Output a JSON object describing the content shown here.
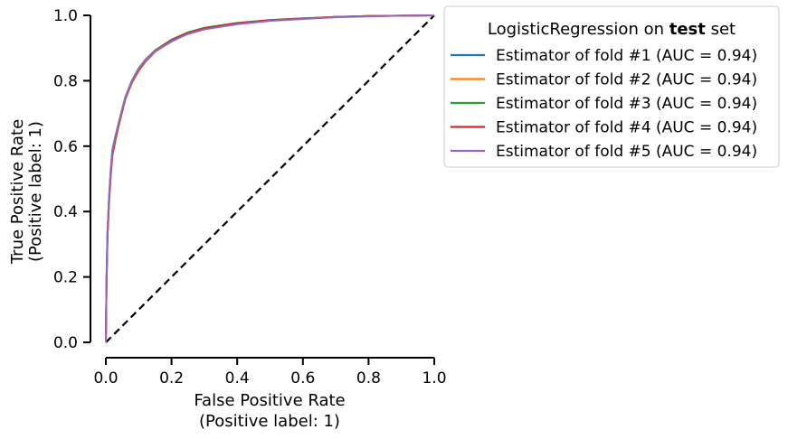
{
  "chart_data": {
    "type": "line",
    "legend": {
      "title_prefix": "LogisticRegression on ",
      "title_bold": "test",
      "title_suffix": " set",
      "placement": "outside-upper-right"
    },
    "xlabel_line1": "False Positive Rate",
    "xlabel_line2": "(Positive label: 1)",
    "ylabel_line1": "True Positive Rate",
    "ylabel_line2": "(Positive label: 1)",
    "xlim": [
      0,
      1
    ],
    "ylim": [
      0,
      1
    ],
    "x_ticks": [
      {
        "value": 0.0,
        "label": "0.0"
      },
      {
        "value": 0.2,
        "label": "0.2"
      },
      {
        "value": 0.4,
        "label": "0.4"
      },
      {
        "value": 0.6,
        "label": "0.6"
      },
      {
        "value": 0.8,
        "label": "0.8"
      },
      {
        "value": 1.0,
        "label": "1.0"
      }
    ],
    "y_ticks": [
      {
        "value": 0.0,
        "label": "0.0"
      },
      {
        "value": 0.2,
        "label": "0.2"
      },
      {
        "value": 0.4,
        "label": "0.4"
      },
      {
        "value": 0.6,
        "label": "0.6"
      },
      {
        "value": 0.8,
        "label": "0.8"
      },
      {
        "value": 1.0,
        "label": "1.0"
      }
    ],
    "grid": false,
    "chance_line": {
      "x": [
        0,
        1
      ],
      "y": [
        0,
        1
      ],
      "color": "#000000",
      "style": "dashed"
    },
    "series": [
      {
        "name": "Estimator of fold #1 (AUC = 0.94)",
        "color": "#1f77b4",
        "x": [
          0,
          0.002,
          0.005,
          0.01,
          0.015,
          0.02,
          0.03,
          0.04,
          0.05,
          0.06,
          0.08,
          0.1,
          0.12,
          0.15,
          0.2,
          0.25,
          0.3,
          0.4,
          0.5,
          0.6,
          0.7,
          0.8,
          0.9,
          1.0
        ],
        "y": [
          0,
          0.18,
          0.33,
          0.44,
          0.52,
          0.58,
          0.63,
          0.67,
          0.71,
          0.75,
          0.8,
          0.835,
          0.86,
          0.89,
          0.92,
          0.945,
          0.96,
          0.975,
          0.985,
          0.99,
          0.995,
          0.998,
          0.999,
          1.0
        ]
      },
      {
        "name": "Estimator of fold #2 (AUC = 0.94)",
        "color": "#ff7f0e",
        "x": [
          0,
          0.002,
          0.005,
          0.01,
          0.015,
          0.02,
          0.03,
          0.04,
          0.05,
          0.06,
          0.08,
          0.1,
          0.12,
          0.15,
          0.2,
          0.25,
          0.3,
          0.4,
          0.5,
          0.6,
          0.7,
          0.8,
          0.9,
          1.0
        ],
        "y": [
          0,
          0.17,
          0.32,
          0.43,
          0.51,
          0.57,
          0.62,
          0.665,
          0.705,
          0.745,
          0.795,
          0.83,
          0.857,
          0.888,
          0.922,
          0.944,
          0.958,
          0.974,
          0.984,
          0.99,
          0.995,
          0.998,
          0.999,
          1.0
        ]
      },
      {
        "name": "Estimator of fold #3 (AUC = 0.94)",
        "color": "#2ca02c",
        "x": [
          0,
          0.002,
          0.005,
          0.01,
          0.015,
          0.02,
          0.03,
          0.04,
          0.05,
          0.06,
          0.08,
          0.1,
          0.12,
          0.15,
          0.2,
          0.25,
          0.3,
          0.4,
          0.5,
          0.6,
          0.7,
          0.8,
          0.9,
          1.0
        ],
        "y": [
          0,
          0.19,
          0.34,
          0.45,
          0.53,
          0.59,
          0.635,
          0.675,
          0.715,
          0.752,
          0.802,
          0.838,
          0.864,
          0.893,
          0.926,
          0.948,
          0.962,
          0.977,
          0.986,
          0.991,
          0.995,
          0.998,
          0.999,
          1.0
        ]
      },
      {
        "name": "Estimator of fold #4 (AUC = 0.94)",
        "color": "#d62728",
        "x": [
          0,
          0.002,
          0.005,
          0.01,
          0.015,
          0.02,
          0.03,
          0.04,
          0.05,
          0.06,
          0.08,
          0.1,
          0.12,
          0.15,
          0.2,
          0.25,
          0.3,
          0.4,
          0.5,
          0.6,
          0.7,
          0.8,
          0.9,
          1.0
        ],
        "y": [
          0,
          0.175,
          0.325,
          0.435,
          0.515,
          0.575,
          0.625,
          0.668,
          0.708,
          0.748,
          0.798,
          0.833,
          0.86,
          0.891,
          0.924,
          0.946,
          0.96,
          0.976,
          0.985,
          0.99,
          0.995,
          0.998,
          0.999,
          1.0
        ]
      },
      {
        "name": "Estimator of fold #5 (AUC = 0.94)",
        "color": "#9467bd",
        "x": [
          0,
          0.002,
          0.005,
          0.01,
          0.015,
          0.02,
          0.03,
          0.04,
          0.05,
          0.06,
          0.08,
          0.1,
          0.12,
          0.15,
          0.2,
          0.25,
          0.3,
          0.4,
          0.5,
          0.6,
          0.7,
          0.8,
          0.9,
          1.0
        ],
        "y": [
          0,
          0.185,
          0.335,
          0.445,
          0.525,
          0.585,
          0.632,
          0.672,
          0.712,
          0.75,
          0.8,
          0.836,
          0.862,
          0.89,
          0.921,
          0.943,
          0.957,
          0.973,
          0.983,
          0.989,
          0.994,
          0.997,
          0.999,
          1.0
        ]
      }
    ]
  }
}
